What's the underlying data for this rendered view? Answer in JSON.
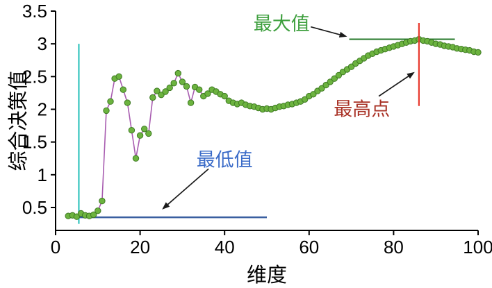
{
  "chart_data": {
    "type": "line",
    "title": "",
    "xlabel": "维度",
    "ylabel": "综合决策值",
    "xlim": [
      0,
      100
    ],
    "ylim": [
      0.15,
      3.5
    ],
    "xticks": [
      0,
      20,
      40,
      60,
      80,
      100
    ],
    "yticks": [
      0.5,
      1,
      1.5,
      2,
      2.5,
      3,
      3.5
    ],
    "grid": false,
    "legend": "none",
    "axis_color": "#000000",
    "arrow_color": "#1a1a1a",
    "series": [
      {
        "name": "综合决策值",
        "line_color": "#A85CB0",
        "marker": "circle",
        "marker_color": "#6CB33F",
        "marker_edge_color": "#3E7A23",
        "x": [
          3,
          4,
          5,
          6,
          7,
          8,
          9,
          10,
          11,
          12,
          13,
          14,
          15,
          16,
          17,
          18,
          19,
          20,
          21,
          22,
          23,
          24,
          25,
          26,
          27,
          28,
          29,
          30,
          31,
          32,
          33,
          34,
          35,
          36,
          37,
          38,
          39,
          40,
          41,
          42,
          43,
          44,
          45,
          46,
          47,
          48,
          49,
          50,
          51,
          52,
          53,
          54,
          55,
          56,
          57,
          58,
          59,
          60,
          61,
          62,
          63,
          64,
          65,
          66,
          67,
          68,
          69,
          70,
          71,
          72,
          73,
          74,
          75,
          76,
          77,
          78,
          79,
          80,
          81,
          82,
          83,
          84,
          85,
          86,
          87,
          88,
          89,
          90,
          91,
          92,
          93,
          94,
          95,
          96,
          97,
          98,
          99,
          100
        ],
        "y": [
          0.37,
          0.38,
          0.36,
          0.41,
          0.38,
          0.37,
          0.39,
          0.45,
          0.6,
          1.98,
          2.12,
          2.47,
          2.5,
          2.3,
          2.1,
          1.68,
          1.25,
          1.6,
          1.7,
          1.63,
          2.18,
          2.28,
          2.22,
          2.27,
          2.33,
          2.4,
          2.55,
          2.42,
          2.35,
          2.1,
          2.34,
          2.3,
          2.2,
          2.24,
          2.3,
          2.27,
          2.23,
          2.2,
          2.13,
          2.1,
          2.08,
          2.1,
          2.07,
          2.05,
          2.04,
          2.02,
          2.0,
          2.01,
          2.0,
          2.02,
          2.04,
          2.05,
          2.07,
          2.08,
          2.1,
          2.12,
          2.15,
          2.2,
          2.23,
          2.28,
          2.32,
          2.37,
          2.42,
          2.47,
          2.52,
          2.57,
          2.61,
          2.65,
          2.7,
          2.74,
          2.78,
          2.82,
          2.85,
          2.88,
          2.9,
          2.92,
          2.94,
          2.96,
          2.98,
          3.0,
          3.02,
          3.04,
          3.05,
          3.07,
          3.05,
          3.04,
          3.02,
          3.0,
          2.99,
          2.97,
          2.96,
          2.95,
          2.93,
          2.92,
          2.91,
          2.9,
          2.88,
          2.87
        ]
      }
    ],
    "annotations": {
      "max": {
        "label": "最大值",
        "label_color": "#3FA03F",
        "line_color": "#2E7D32",
        "line_y": 3.07,
        "line_x_range": [
          69.5,
          94.5
        ],
        "label_pos": [
          53.5,
          3.33
        ],
        "arrow": [
          [
            60.4,
            3.26
          ],
          [
            69.0,
            3.11
          ]
        ]
      },
      "peak": {
        "label": "最高点",
        "label_color": "#A93226",
        "line_color": "#E8392E",
        "line_x": 86,
        "line_y_range": [
          2.05,
          3.32
        ],
        "label_pos": [
          72.5,
          2.03
        ],
        "arrow": [
          [
            76.5,
            2.2
          ],
          [
            85.0,
            2.57
          ]
        ]
      },
      "min": {
        "label": "最低值",
        "label_color": "#3A6BC8",
        "line_color": "#3A5FA0",
        "line_y": 0.35,
        "line_x_range": [
          3,
          50
        ],
        "label_pos": [
          40,
          1.25
        ],
        "arrow": [
          [
            36.2,
            1.09
          ],
          [
            25.2,
            0.47
          ]
        ]
      },
      "start": {
        "line_color": "#35C4BE",
        "line_x": 5.5,
        "line_y_range": [
          0.25,
          3.0
        ]
      }
    }
  }
}
